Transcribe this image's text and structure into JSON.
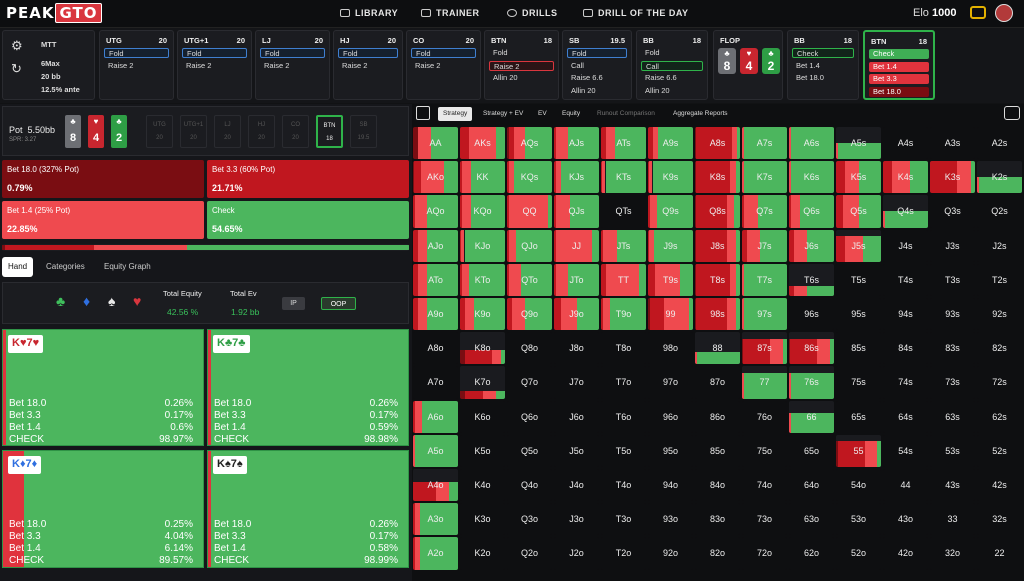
{
  "app": {
    "logo_a": "PEAK",
    "logo_b": "GTO",
    "elo_label": "Elo",
    "elo_value": "1000",
    "nav": [
      {
        "label": "LIBRARY",
        "icon": "book-icon"
      },
      {
        "label": "TRAINER",
        "icon": "gamepad-icon"
      },
      {
        "label": "DRILLS",
        "icon": "target-icon"
      },
      {
        "label": "DRILL OF THE DAY",
        "icon": "calendar-icon"
      }
    ]
  },
  "settings": {
    "game": "MTT",
    "format": "6Max",
    "stack": "20 bb",
    "ante": "12.5% ante"
  },
  "positions": [
    {
      "name": "UTG",
      "stack": "20",
      "actions": [
        {
          "label": "Fold",
          "state": "sel"
        },
        {
          "label": "Raise 2",
          "state": ""
        }
      ]
    },
    {
      "name": "UTG+1",
      "stack": "20",
      "actions": [
        {
          "label": "Fold",
          "state": "sel"
        },
        {
          "label": "Raise 2",
          "state": ""
        }
      ]
    },
    {
      "name": "LJ",
      "stack": "20",
      "actions": [
        {
          "label": "Fold",
          "state": "sel"
        },
        {
          "label": "Raise 2",
          "state": ""
        }
      ]
    },
    {
      "name": "HJ",
      "stack": "20",
      "actions": [
        {
          "label": "Fold",
          "state": "sel"
        },
        {
          "label": "Raise 2",
          "state": ""
        }
      ]
    },
    {
      "name": "CO",
      "stack": "20",
      "actions": [
        {
          "label": "Fold",
          "state": "sel"
        },
        {
          "label": "Raise 2",
          "state": ""
        }
      ]
    },
    {
      "name": "BTN",
      "stack": "18",
      "actions": [
        {
          "label": "Fold",
          "state": ""
        },
        {
          "label": "Raise 2",
          "state": "selr"
        },
        {
          "label": "Allin 20",
          "state": ""
        }
      ]
    },
    {
      "name": "SB",
      "stack": "19.5",
      "actions": [
        {
          "label": "Fold",
          "state": "sel"
        },
        {
          "label": "Call",
          "state": ""
        },
        {
          "label": "Raise 6.6",
          "state": ""
        },
        {
          "label": "Allin 20",
          "state": ""
        }
      ]
    },
    {
      "name": "BB",
      "stack": "18",
      "actions": [
        {
          "label": "Fold",
          "state": ""
        },
        {
          "label": "Call",
          "state": "selg"
        },
        {
          "label": "Raise 6.6",
          "state": ""
        },
        {
          "label": "Allin 20",
          "state": ""
        }
      ]
    },
    {
      "name": "FLOP",
      "stack": "",
      "actions": []
    },
    {
      "name": "BB",
      "stack": "18",
      "actions": [
        {
          "label": "Check",
          "state": "selg"
        },
        {
          "label": "Bet 1.4",
          "state": ""
        },
        {
          "label": "Bet 18.0",
          "state": ""
        }
      ]
    },
    {
      "name": "BTN",
      "stack": "18",
      "actions": [
        {
          "label": "Check",
          "state": "check"
        },
        {
          "label": "Bet 1.4",
          "state": "betr"
        },
        {
          "label": "Bet 3.3",
          "state": "betr"
        },
        {
          "label": "Bet 18.0",
          "state": "betd"
        }
      ]
    }
  ],
  "flop": [
    {
      "rank": "8",
      "suit": "♣",
      "color": "#6d6f74"
    },
    {
      "rank": "4",
      "suit": "♥",
      "color": "#c8262f"
    },
    {
      "rank": "2",
      "suit": "♣",
      "color": "#2e9e45"
    }
  ],
  "pot": {
    "label": "Pot",
    "value": "5.50bb",
    "spr": "SPR: 3.27"
  },
  "mini_positions": [
    {
      "n": "UTG",
      "s": "20"
    },
    {
      "n": "UTG+1",
      "s": "20"
    },
    {
      "n": "LJ",
      "s": "20"
    },
    {
      "n": "HJ",
      "s": "20"
    },
    {
      "n": "CO",
      "s": "20"
    },
    {
      "n": "BTN",
      "s": "18"
    },
    {
      "n": "SB",
      "s": "19.5"
    }
  ],
  "strategy": [
    {
      "label": "Bet 18.0 (327% Pot)",
      "value": "0.79%",
      "color": "#7a0d12"
    },
    {
      "label": "Bet 3.3 (60% Pot)",
      "value": "21.71%",
      "color": "#c0171f"
    },
    {
      "label": "Bet 1.4 (25% Pot)",
      "value": "22.85%",
      "color": "#ef4a4f"
    },
    {
      "label": "Check",
      "value": "54.65%",
      "color": "#4cb65e"
    }
  ],
  "freq_bar": [
    0.008,
    0.217,
    0.2285,
    0.5465
  ],
  "left_tabs": [
    "Hand",
    "Categories",
    "Equity Graph"
  ],
  "equity": {
    "suits": [
      {
        "s": "♣",
        "c": "#3fbf5c"
      },
      {
        "s": "♦",
        "c": "#2f6fe0"
      },
      {
        "s": "♠",
        "c": "#e8e8e8"
      },
      {
        "s": "♥",
        "c": "#d9363e"
      }
    ],
    "total_equity_label": "Total Equity",
    "total_equity": "42.56 %",
    "total_ev_label": "Total Ev",
    "total_ev": "1.92 bb",
    "ip": "IP",
    "oop": "OOP"
  },
  "combos": [
    {
      "hand": "K♥7♥",
      "suitcolor": "#c8262f",
      "rows": [
        [
          "Bet 18.0",
          "0.26%"
        ],
        [
          "Bet 3.3",
          "0.17%"
        ],
        [
          "Bet 1.4",
          "0.6%"
        ],
        [
          "CHECK",
          "98.97%"
        ]
      ],
      "bet": 0.01
    },
    {
      "hand": "K♣7♣",
      "suitcolor": "#2e9e45",
      "rows": [
        [
          "Bet 18.0",
          "0.26%"
        ],
        [
          "Bet 3.3",
          "0.17%"
        ],
        [
          "Bet 1.4",
          "0.59%"
        ],
        [
          "CHECK",
          "98.98%"
        ]
      ],
      "bet": 0.01
    },
    {
      "hand": "K♦7♦",
      "suitcolor": "#2f6fe0",
      "rows": [
        [
          "Bet 18.0",
          "0.25%"
        ],
        [
          "Bet 3.3",
          "4.04%"
        ],
        [
          "Bet 1.4",
          "6.14%"
        ],
        [
          "CHECK",
          "89.57%"
        ]
      ],
      "bet": 0.104
    },
    {
      "hand": "K♠7♠",
      "suitcolor": "#222222",
      "rows": [
        [
          "Bet 18.0",
          "0.26%"
        ],
        [
          "Bet 3.3",
          "0.17%"
        ],
        [
          "Bet 1.4",
          "0.58%"
        ],
        [
          "CHECK",
          "98.99%"
        ]
      ],
      "bet": 0.01
    }
  ],
  "right_tabs": [
    "Strategy",
    "Strategy + EV",
    "EV",
    "Equity",
    "Runout Comparison",
    "Aggregate Reports"
  ],
  "ranks": [
    "A",
    "K",
    "Q",
    "J",
    "T",
    "9",
    "8",
    "7",
    "6",
    "5",
    "4",
    "3",
    "2"
  ],
  "range_cells": {
    "AA": [
      0.12,
      0,
      0.28,
      0.6
    ],
    "AKs": [
      0,
      0.2,
      0.6,
      0.2
    ],
    "AQs": [
      0.05,
      0.1,
      0.25,
      0.6
    ],
    "AJs": [
      0,
      0.05,
      0.25,
      0.7
    ],
    "ATs": [
      0,
      0.12,
      0.2,
      0.68
    ],
    "A9s": [
      0,
      0.1,
      0.12,
      0.78
    ],
    "A8s": [
      0.02,
      0.8,
      0.12,
      0.06
    ],
    "A7s": [
      0,
      0,
      0.05,
      0.95
    ],
    "A6s": [
      0,
      0,
      0.05,
      0.95
    ],
    "A5s": [
      0,
      0,
      0.05,
      0.95,
      0.5
    ],
    "AKo": [
      0.03,
      0.15,
      0.5,
      0.32
    ],
    "KK": [
      0,
      0.05,
      0.2,
      0.75
    ],
    "KQs": [
      0,
      0.05,
      0.1,
      0.85
    ],
    "KJs": [
      0,
      0.05,
      0.1,
      0.85
    ],
    "KTs": [
      0,
      0.03,
      0.07,
      0.9
    ],
    "K9s": [
      0,
      0.03,
      0.07,
      0.9
    ],
    "K8s": [
      0.02,
      0.75,
      0.15,
      0.08
    ],
    "K7s": [
      0,
      0,
      0.05,
      0.95
    ],
    "K6s": [
      0,
      0,
      0.05,
      0.95
    ],
    "K5s": [
      0,
      0.2,
      0.3,
      0.5
    ],
    "K4s": [
      0,
      0.2,
      0.4,
      0.4
    ],
    "K3s": [
      0,
      0.6,
      0.3,
      0.1
    ],
    "K2s": [
      0,
      0,
      0.05,
      0.95,
      0.5
    ],
    "AQo": [
      0,
      0.05,
      0.25,
      0.7
    ],
    "KQo": [
      0,
      0.05,
      0.2,
      0.75
    ],
    "QQ": [
      0,
      0.05,
      0.85,
      0.1
    ],
    "QJs": [
      0,
      0.05,
      0.3,
      0.65
    ],
    "Q9s": [
      0,
      0.05,
      0.15,
      0.8
    ],
    "Q8s": [
      0.02,
      0.7,
      0.15,
      0.13
    ],
    "Q7s": [
      0,
      0.05,
      0.3,
      0.65
    ],
    "Q6s": [
      0,
      0.05,
      0.2,
      0.75
    ],
    "Q5s": [
      0,
      0.15,
      0.35,
      0.5
    ],
    "Q4s": [
      0,
      0,
      0.05,
      0.95,
      0.5
    ],
    "AJo": [
      0,
      0.1,
      0.2,
      0.7
    ],
    "KJo": [
      0,
      0.03,
      0.07,
      0.9
    ],
    "QJo": [
      0,
      0.05,
      0.15,
      0.8
    ],
    "JJ": [
      0,
      0.05,
      0.8,
      0.15
    ],
    "JTs": [
      0,
      0.05,
      0.3,
      0.65
    ],
    "J9s": [
      0,
      0.03,
      0.1,
      0.87
    ],
    "J8s": [
      0.02,
      0.7,
      0.2,
      0.08
    ],
    "J7s": [
      0,
      0.1,
      0.3,
      0.6
    ],
    "J6s": [
      0,
      0.1,
      0.3,
      0.6
    ],
    "J5s": [
      0,
      0.2,
      0.4,
      0.4,
      0.8
    ],
    "ATo": [
      0,
      0.1,
      0.2,
      0.7
    ],
    "KTo": [
      0,
      0.05,
      0.15,
      0.8
    ],
    "QTo": [
      0,
      0.05,
      0.25,
      0.7
    ],
    "JTo": [
      0,
      0.05,
      0.25,
      0.7
    ],
    "TT": [
      0,
      0.1,
      0.75,
      0.15
    ],
    "T9s": [
      0,
      0.15,
      0.55,
      0.3
    ],
    "T8s": [
      0.02,
      0.75,
      0.15,
      0.08
    ],
    "T7s": [
      0,
      0,
      0.05,
      0.95
    ],
    "T6s": [
      0,
      0.1,
      0.3,
      0.6,
      0.3
    ],
    "A9o": [
      0,
      0.1,
      0.2,
      0.7
    ],
    "K9o": [
      0,
      0.1,
      0.2,
      0.7
    ],
    "Q9o": [
      0,
      0.1,
      0.3,
      0.6
    ],
    "J9o": [
      0,
      0.15,
      0.35,
      0.5
    ],
    "T9o": [
      0,
      0.05,
      0.15,
      0.8
    ],
    "99": [
      0.05,
      0.3,
      0.55,
      0.1
    ],
    "98s": [
      0.02,
      0.7,
      0.2,
      0.08
    ],
    "97s": [
      0,
      0,
      0.05,
      0.95
    ],
    "K8o": [
      0.1,
      0.6,
      0.2,
      0.1,
      0.45
    ],
    "88": [
      0,
      0,
      0.05,
      0.95,
      0.4
    ],
    "87s": [
      0.02,
      0.6,
      0.3,
      0.08,
      0.8
    ],
    "86s": [
      0.02,
      0.6,
      0.3,
      0.08,
      0.8
    ],
    "K7o": [
      0.1,
      0.4,
      0.3,
      0.2,
      0.25
    ],
    "77": [
      0,
      0,
      0.05,
      0.95,
      0.8
    ],
    "76s": [
      0,
      0,
      0.05,
      0.95,
      0.8
    ],
    "A6o": [
      0,
      0.05,
      0.15,
      0.8
    ],
    "66": [
      0,
      0,
      0.05,
      0.95,
      0.6
    ],
    "A5o": [
      0,
      0,
      0.05,
      0.95
    ],
    "55": [
      0.05,
      0.6,
      0.25,
      0.1,
      0.8
    ],
    "A4o": [
      0,
      0.5,
      0.3,
      0.2,
      0.6
    ],
    "A3o": [
      0,
      0.05,
      0.1,
      0.85
    ],
    "A2o": [
      0,
      0.05,
      0.1,
      0.85
    ]
  }
}
